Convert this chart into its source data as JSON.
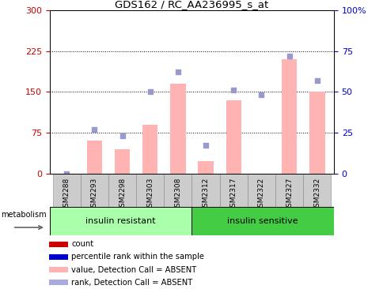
{
  "title": "GDS162 / RC_AA236995_s_at",
  "samples": [
    "GSM2288",
    "GSM2293",
    "GSM2298",
    "GSM2303",
    "GSM2308",
    "GSM2312",
    "GSM2317",
    "GSM2322",
    "GSM2327",
    "GSM2332"
  ],
  "bar_values": [
    0,
    60,
    45,
    90,
    165,
    22,
    135,
    0,
    210,
    150
  ],
  "rank_dots": [
    0,
    27,
    23,
    50,
    62,
    17,
    51,
    48,
    72,
    57
  ],
  "group1_label": "insulin resistant",
  "group2_label": "insulin sensitive",
  "group1_count": 5,
  "group2_count": 5,
  "bar_color": "#ffb3b3",
  "dot_color": "#9999cc",
  "left_yticks": [
    0,
    75,
    150,
    225,
    300
  ],
  "right_yticks": [
    0,
    25,
    50,
    75,
    100
  ],
  "right_yticklabels": [
    "0",
    "25",
    "50",
    "75",
    "100%"
  ],
  "left_ycolor": "#cc0000",
  "right_ycolor": "#0000cc",
  "group1_color": "#aaffaa",
  "group2_color": "#44cc44",
  "tick_bg_color": "#cccccc",
  "legend_colors": [
    "#cc0000",
    "#0000cc",
    "#ffb3b3",
    "#aaaadd"
  ],
  "legend_labels": [
    "count",
    "percentile rank within the sample",
    "value, Detection Call = ABSENT",
    "rank, Detection Call = ABSENT"
  ]
}
